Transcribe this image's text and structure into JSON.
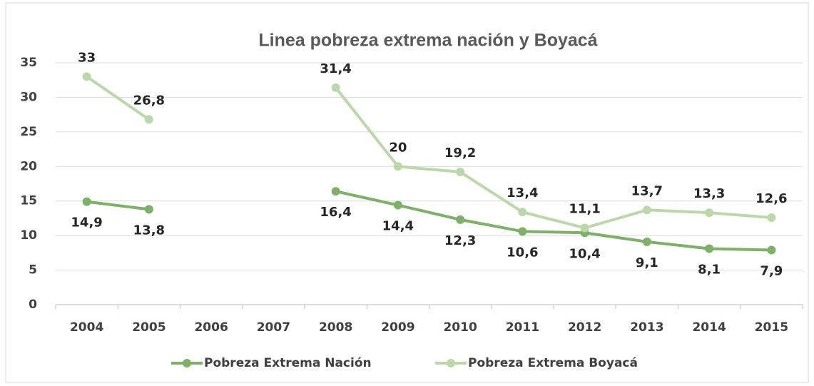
{
  "chart_data": {
    "type": "line",
    "title": "Linea pobreza extrema nación y Boyacá",
    "categories": [
      "2004",
      "2005",
      "2006",
      "2007",
      "2008",
      "2009",
      "2010",
      "2011",
      "2012",
      "2013",
      "2014",
      "2015"
    ],
    "series": [
      {
        "name": "Pobreza Extrema Nación",
        "color": "#7fb069",
        "values": [
          14.9,
          13.8,
          null,
          null,
          16.4,
          14.4,
          12.3,
          10.6,
          10.4,
          9.1,
          8.1,
          7.9
        ],
        "value_labels": [
          "14,9",
          "13,8",
          null,
          null,
          "16,4",
          "14,4",
          "12,3",
          "10,6",
          "10,4",
          "9,1",
          "8,1",
          "7,9"
        ]
      },
      {
        "name": "Pobreza Extrema Boyacá",
        "color": "#bcd8ab",
        "values": [
          33,
          26.8,
          null,
          null,
          31.4,
          20,
          19.2,
          13.4,
          11.1,
          13.7,
          13.3,
          12.6
        ],
        "value_labels": [
          "33",
          "26,8",
          null,
          null,
          "31,4",
          "20",
          "19,2",
          "13,4",
          "11,1",
          "13,7",
          "13,3",
          "12,6"
        ]
      }
    ],
    "ylim": [
      0,
      35
    ],
    "yticks": [
      0,
      5,
      10,
      15,
      20,
      25,
      30,
      35
    ],
    "grid": true,
    "legend": "bottom"
  }
}
